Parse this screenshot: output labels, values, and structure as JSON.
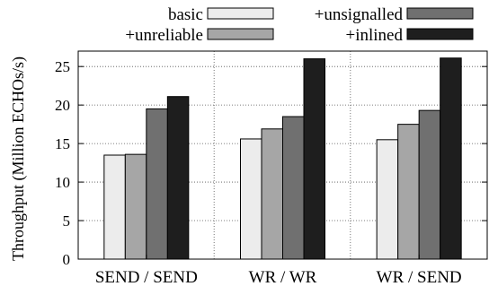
{
  "chart_data": {
    "type": "bar",
    "ylabel": "Throughput (Million ECHOs/s)",
    "xlabel": "",
    "ylim": [
      0,
      27
    ],
    "yticks": [
      0,
      5,
      10,
      15,
      20,
      25
    ],
    "grid": "dotted vertical and horizontal lines inside plot",
    "legend_placement": "top",
    "categories": [
      "SEND / SEND",
      "WR / WR",
      "WR / SEND"
    ],
    "series": [
      {
        "name": "basic",
        "color": "#ececec",
        "values": [
          13.5,
          15.6,
          15.5
        ]
      },
      {
        "name": "+unreliable",
        "color": "#a6a6a6",
        "values": [
          13.6,
          16.9,
          17.5
        ]
      },
      {
        "name": "+unsignalled",
        "color": "#707070",
        "values": [
          19.5,
          18.5,
          19.3
        ]
      },
      {
        "name": "+inlined",
        "color": "#1e1e1e",
        "values": [
          21.1,
          26.0,
          26.1
        ]
      }
    ]
  }
}
